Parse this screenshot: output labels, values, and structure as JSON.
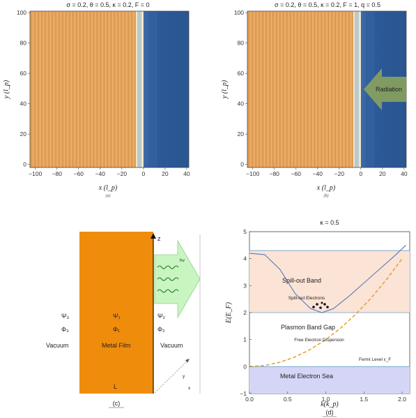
{
  "panel_a": {
    "title": "σ = 0.2, θ = 0.5, κ = 0.2, F = 0",
    "xlabel": "x (l_p)",
    "ylabel": "y (l_p)",
    "caption": "(a)",
    "xticks": [
      "−100",
      "−80",
      "−60",
      "−40",
      "−20",
      "0",
      "20",
      "40"
    ],
    "yticks": [
      "0",
      "20",
      "40",
      "60",
      "80",
      "100"
    ]
  },
  "panel_b": {
    "title": "σ = 0.2, θ = 0.5, κ = 0.2, F = 1, q = 0.5",
    "xlabel": "x (l_p)",
    "ylabel": "y (l_p)",
    "caption": "(b)",
    "xticks": [
      "−100",
      "−80",
      "−60",
      "−40",
      "−20",
      "0",
      "20",
      "40"
    ],
    "yticks": [
      "0",
      "20",
      "40",
      "60",
      "80",
      "100"
    ],
    "arrow_label": "Radiation"
  },
  "panel_c": {
    "caption": "(c)",
    "z_label": "z",
    "x_label": "x",
    "y_label": "y",
    "hv_label": "hν",
    "psi3": "Ψ₃",
    "phi3": "Φ₃",
    "psi1": "Ψ₁",
    "phi1": "Φ₁",
    "psi2": "Ψ₂",
    "phi2": "Φ₂",
    "vacuum_left": "Vacuum",
    "vacuum_right": "Vacuum",
    "metal_film": "Metal Film",
    "L_label": "L"
  },
  "panel_d": {
    "title": "κ = 0.5",
    "xlabel": "k(k_p)",
    "ylabel": "E(E_F)",
    "caption": "(d)",
    "xticks": [
      "0.0",
      "0.5",
      "1.0",
      "1.5",
      "2.0"
    ],
    "yticks": [
      "−1",
      "0",
      "1",
      "2",
      "3",
      "4",
      "5"
    ],
    "spill_band": "Spill-out Band",
    "spill_electrons": "Spill-out Electrons",
    "band_gap": "Plasmon Band Gap",
    "free_dispersion": "Free Electron Dispersion",
    "fermi_level": "Fermi Level ε_F",
    "metal_sea": "Metal Electron Sea"
  },
  "chart_data": [
    {
      "type": "line",
      "title": "κ = 0.5",
      "xlabel": "k(k_p)",
      "ylabel": "E(E_F)",
      "xlim": [
        0,
        2.1
      ],
      "ylim": [
        -1,
        5
      ],
      "series": [
        {
          "x": [
            0,
            0.2,
            0.4,
            0.6,
            0.8,
            0.95,
            1.1,
            1.3,
            1.5,
            1.7,
            1.9,
            2.05
          ],
          "y": [
            4.2,
            4.15,
            3.6,
            2.7,
            2.15,
            2.0,
            2.15,
            2.6,
            3.1,
            3.6,
            4.1,
            4.5
          ]
        },
        {
          "x": [
            0,
            0.2,
            0.4,
            0.6,
            0.8,
            1.0,
            1.2,
            1.4,
            1.6,
            1.8,
            2.0
          ],
          "y": [
            0,
            0.04,
            0.16,
            0.36,
            0.64,
            1.0,
            1.44,
            1.96,
            2.56,
            3.24,
            4.0
          ]
        }
      ]
    }
  ]
}
